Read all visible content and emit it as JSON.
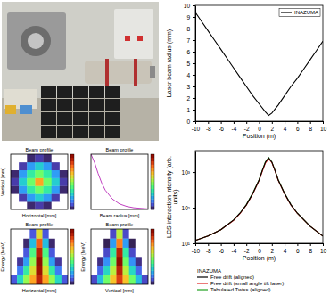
{
  "chart_data": [
    {
      "type": "line",
      "xlabel": "Position (m)",
      "ylabel": "Laser beam radius (mm)",
      "x": [
        -10,
        -9,
        -8,
        -7,
        -6,
        -5,
        -4,
        -3,
        -2,
        -1,
        0,
        1,
        1.5,
        2,
        3,
        4,
        5,
        6,
        7,
        8,
        9,
        10
      ],
      "series": [
        {
          "name": "INAZUMA",
          "color": "#000000",
          "values": [
            9.4,
            8.6,
            7.8,
            7.0,
            6.2,
            5.4,
            4.6,
            3.8,
            3.0,
            2.2,
            1.5,
            0.8,
            0.5,
            0.7,
            1.4,
            2.2,
            3.0,
            3.7,
            4.5,
            5.3,
            6.1,
            6.9
          ]
        }
      ],
      "xlim": [
        -10,
        10
      ],
      "ylim": [
        0,
        10
      ],
      "xticks": [
        -10,
        -8,
        -6,
        -4,
        -2,
        0,
        2,
        4,
        6,
        8,
        10
      ],
      "yticks": [
        0,
        1,
        2,
        3,
        4,
        5,
        6,
        7,
        8,
        9,
        10
      ],
      "legend": "upper right"
    },
    {
      "type": "heatmap",
      "title": "Beam profile",
      "xlabel": "Horizontal [mm]",
      "ylabel": "Vertical [mm]",
      "xlim": [
        -3,
        3
      ],
      "ylim": [
        -3,
        3
      ],
      "z": [
        [
          0,
          0,
          300,
          600,
          300,
          0,
          0
        ],
        [
          0,
          600,
          2000,
          2800,
          2000,
          600,
          0
        ],
        [
          300,
          2000,
          3500,
          4500,
          3500,
          2000,
          300
        ],
        [
          600,
          2800,
          4500,
          7000,
          4500,
          2800,
          600
        ],
        [
          300,
          2000,
          3500,
          4500,
          3500,
          2000,
          300
        ],
        [
          0,
          600,
          2000,
          2800,
          2000,
          600,
          0
        ],
        [
          0,
          0,
          300,
          600,
          300,
          0,
          0
        ]
      ],
      "colorbar_range": [
        0,
        10000
      ],
      "tick_labels": false
    },
    {
      "type": "line",
      "title": "Beam profile",
      "xlabel": "Beam radius [mm]",
      "x": [
        0,
        0.5,
        1,
        1.5,
        2,
        3,
        4,
        5,
        6,
        8
      ],
      "series": [
        {
          "color": "#c040c0",
          "values": [
            10000,
            8500,
            6500,
            4800,
            3500,
            1900,
            1000,
            550,
            300,
            100
          ]
        }
      ],
      "xlim": [
        0,
        8
      ],
      "ylim": [
        0,
        10000
      ],
      "colorbar_range": [
        0,
        10000
      ],
      "tick_labels": false
    },
    {
      "type": "heatmap",
      "title": "Beam profile",
      "xlabel": "Horizontal [mm]",
      "ylabel": "Energy [MeV]",
      "xlim": [
        -3,
        3
      ],
      "ylim": [
        0,
        30
      ],
      "z": [
        [
          1000,
          3000,
          5000,
          7000,
          9000,
          7000,
          5000,
          3000,
          1000
        ],
        [
          0,
          1500,
          3500,
          6000,
          9500,
          6000,
          3500,
          1500,
          0
        ],
        [
          0,
          500,
          2000,
          5000,
          10000,
          5000,
          2000,
          500,
          0
        ],
        [
          0,
          0,
          1000,
          4000,
          9000,
          4000,
          1000,
          0,
          0
        ],
        [
          0,
          0,
          300,
          2500,
          8000,
          2500,
          300,
          0,
          0
        ],
        [
          0,
          0,
          0,
          1000,
          6000,
          1000,
          0,
          0,
          0
        ]
      ],
      "colorbar_range": [
        0,
        10000
      ],
      "tick_labels": false
    },
    {
      "type": "heatmap",
      "title": "Beam profile",
      "xlabel": "Vertical [mm]",
      "ylabel": "Energy [MeV]",
      "xlim": [
        -3,
        3
      ],
      "ylim": [
        0,
        30
      ],
      "z": [
        [
          800,
          2500,
          4500,
          6500,
          8500,
          6500,
          4500,
          2500,
          800
        ],
        [
          0,
          1200,
          3000,
          5500,
          9000,
          5500,
          3000,
          1200,
          0
        ],
        [
          0,
          400,
          1800,
          4500,
          10000,
          4500,
          1800,
          400,
          0
        ],
        [
          0,
          0,
          800,
          3500,
          9000,
          3500,
          800,
          0,
          0
        ],
        [
          0,
          0,
          200,
          2000,
          7500,
          2000,
          200,
          0,
          0
        ],
        [
          0,
          0,
          0,
          800,
          5500,
          800,
          0,
          0,
          0
        ]
      ],
      "colorbar_range": [
        0,
        10000
      ],
      "tick_labels": false
    },
    {
      "type": "line",
      "log": "y",
      "xlabel": "Position (m)",
      "ylabel": "LCS interaction intensity (arb. units)",
      "legend_title": "INAZUMA",
      "x": [
        -10,
        -8,
        -6,
        -4,
        -3,
        -2,
        -1,
        0,
        0.5,
        1,
        1.5,
        2,
        2.5,
        3,
        4,
        5,
        6,
        8,
        10
      ],
      "series": [
        {
          "name": "Free drift (aligned)",
          "color": "#000000",
          "values": [
            12,
            16,
            24,
            45,
            70,
            120,
            250,
            600,
            1100,
            1900,
            2500,
            1900,
            1100,
            600,
            250,
            120,
            70,
            30,
            16
          ]
        },
        {
          "name": "Free drift (small angle tilt laser)",
          "color": "#e02020",
          "values": [
            12,
            16,
            24,
            44,
            68,
            118,
            240,
            580,
            1050,
            1800,
            2350,
            1850,
            1080,
            590,
            245,
            118,
            69,
            30,
            16
          ]
        },
        {
          "name": "Tabulated Twiss (aligned)",
          "color": "#20a020",
          "values": [
            12,
            16,
            24,
            45,
            70,
            122,
            255,
            610,
            1120,
            1950,
            2550,
            1920,
            1110,
            605,
            252,
            121,
            70,
            30,
            16
          ]
        }
      ],
      "xlim": [
        -10,
        10
      ],
      "ylim": [
        10,
        4000
      ],
      "xticks": [
        -10,
        -8,
        -6,
        -4,
        -2,
        0,
        2,
        4,
        6,
        8,
        10
      ],
      "yticks": [
        {
          "value": 10,
          "label": "10¹"
        },
        {
          "value": 100,
          "label": "10²"
        },
        {
          "value": 1000,
          "label": "10³"
        }
      ],
      "legend": "bottom"
    }
  ]
}
